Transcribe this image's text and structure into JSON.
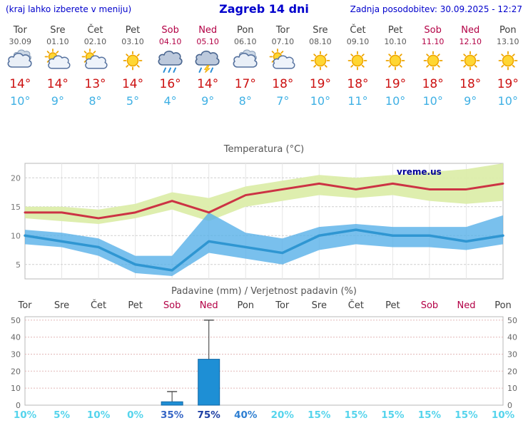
{
  "header": {
    "left_note": "(kraj lahko izberete v meniju)",
    "title": "Zagreb 14 dni",
    "updated": "Zadnja posodobitev: 30.09.2025 - 12:27"
  },
  "colors": {
    "header_blue": "#0000cc",
    "temp_max_red": "#cc1111",
    "temp_min_blue": "#3fb0e4",
    "weekend_red": "#b30045",
    "weekday_gray": "#3d3d3d",
    "date_gray": "#5a5a5a",
    "watermark_navy": "#000099"
  },
  "days": [
    {
      "name": "Tor",
      "date": "30.09",
      "icon": "cloudy-icon",
      "tmax": "14°",
      "tmin": "10°",
      "weekend": false
    },
    {
      "name": "Sre",
      "date": "01.10",
      "icon": "partly-sunny-icon",
      "tmax": "14°",
      "tmin": "9°",
      "weekend": false
    },
    {
      "name": "Čet",
      "date": "02.10",
      "icon": "partly-sunny-icon",
      "tmax": "13°",
      "tmin": "8°",
      "weekend": false
    },
    {
      "name": "Pet",
      "date": "03.10",
      "icon": "sunny-icon",
      "tmax": "14°",
      "tmin": "5°",
      "weekend": false
    },
    {
      "name": "Sob",
      "date": "04.10",
      "icon": "rain-icon",
      "tmax": "16°",
      "tmin": "4°",
      "weekend": true
    },
    {
      "name": "Ned",
      "date": "05.10",
      "icon": "storm-icon",
      "tmax": "14°",
      "tmin": "9°",
      "weekend": true
    },
    {
      "name": "Pon",
      "date": "06.10",
      "icon": "cloudy-icon",
      "tmax": "17°",
      "tmin": "8°",
      "weekend": false
    },
    {
      "name": "Tor",
      "date": "07.10",
      "icon": "partly-sunny-icon",
      "tmax": "18°",
      "tmin": "7°",
      "weekend": false
    },
    {
      "name": "Sre",
      "date": "08.10",
      "icon": "sunny-icon",
      "tmax": "19°",
      "tmin": "10°",
      "weekend": false
    },
    {
      "name": "Čet",
      "date": "09.10",
      "icon": "sunny-icon",
      "tmax": "18°",
      "tmin": "11°",
      "weekend": false
    },
    {
      "name": "Pet",
      "date": "10.10",
      "icon": "sunny-icon",
      "tmax": "19°",
      "tmin": "10°",
      "weekend": false
    },
    {
      "name": "Sob",
      "date": "11.10",
      "icon": "sunny-icon",
      "tmax": "18°",
      "tmin": "10°",
      "weekend": true
    },
    {
      "name": "Ned",
      "date": "12.10",
      "icon": "sunny-icon",
      "tmax": "18°",
      "tmin": "9°",
      "weekend": true
    },
    {
      "name": "Pon",
      "date": "13.10",
      "icon": "sunny-icon",
      "tmax": "19°",
      "tmin": "10°",
      "weekend": false
    }
  ],
  "chart_data": [
    {
      "type": "line",
      "title": "Temperatura (°C)",
      "categories": [
        "Tor 30.09",
        "Sre 01.10",
        "Čet 02.10",
        "Pet 03.10",
        "Sob 04.10",
        "Ned 05.10",
        "Pon 06.10",
        "Tor 07.10",
        "Sre 08.10",
        "Čet 09.10",
        "Pet 10.10",
        "Sob 11.10",
        "Ned 12.10",
        "Pon 13.10"
      ],
      "series": [
        {
          "name": "temp_max",
          "color": "#cc3344",
          "values": [
            14,
            14,
            13,
            14,
            16,
            14,
            17,
            18,
            19,
            18,
            19,
            18,
            18,
            19
          ]
        },
        {
          "name": "temp_min",
          "color": "#2f96d2",
          "values": [
            10,
            9,
            8,
            5,
            4,
            9,
            8,
            7,
            10,
            11,
            10,
            10,
            9,
            10
          ]
        },
        {
          "name": "temp_max_band_upper",
          "color": "#dcedaa",
          "values": [
            15,
            15,
            14.5,
            15.5,
            17.5,
            16.5,
            18.5,
            19.5,
            20.5,
            20,
            20.5,
            21,
            21.5,
            22.5
          ]
        },
        {
          "name": "temp_max_band_lower",
          "color": "#dcedaa",
          "values": [
            13,
            12.5,
            12,
            13,
            14.5,
            12.5,
            15,
            16,
            17,
            16.5,
            17,
            16,
            15.5,
            16
          ]
        },
        {
          "name": "temp_min_band_upper",
          "color": "#57b0e8",
          "values": [
            11,
            10.5,
            9.5,
            6.5,
            6.5,
            14,
            10.5,
            9.5,
            11.5,
            12,
            11.5,
            11.5,
            11.5,
            13.5
          ]
        },
        {
          "name": "temp_min_band_lower",
          "color": "#57b0e8",
          "values": [
            8.5,
            8,
            6.5,
            3.5,
            3,
            7,
            6,
            5,
            7.5,
            8.5,
            8,
            8,
            7.5,
            8.5
          ]
        }
      ],
      "ylim": [
        2.5,
        22.5
      ],
      "yticks": [
        5,
        10,
        15,
        20
      ],
      "grid": true,
      "legend": "none",
      "watermark": "vreme.us"
    },
    {
      "type": "bar",
      "title": "Padavine (mm) / Verjetnost padavin (%)",
      "categories": [
        "Tor",
        "Sre",
        "Čet",
        "Pet",
        "Sob",
        "Ned",
        "Pon",
        "Tor",
        "Sre",
        "Čet",
        "Pet",
        "Sob",
        "Ned",
        "Pon"
      ],
      "weekend_mask": [
        false,
        false,
        false,
        false,
        true,
        true,
        false,
        false,
        false,
        false,
        false,
        true,
        true,
        false
      ],
      "precip_mm": [
        0,
        0,
        0,
        0,
        2,
        27,
        0,
        0,
        0,
        0,
        0,
        0,
        0,
        0
      ],
      "whisker_max_mm": [
        0,
        0,
        0,
        0,
        8,
        50,
        0,
        0,
        0,
        0,
        0,
        0,
        0,
        0
      ],
      "probability_pct": [
        10,
        5,
        10,
        0,
        35,
        75,
        40,
        20,
        15,
        15,
        15,
        15,
        15,
        10
      ],
      "probability_labels": [
        {
          "text": "10%",
          "color": "#55d4ec"
        },
        {
          "text": "5%",
          "color": "#55d4ec"
        },
        {
          "text": "10%",
          "color": "#55d4ec"
        },
        {
          "text": "0%",
          "color": "#55d4ec"
        },
        {
          "text": "35%",
          "color": "#3565c5"
        },
        {
          "text": "75%",
          "color": "#1d3fa3"
        },
        {
          "text": "40%",
          "color": "#2e7fd2"
        },
        {
          "text": "20%",
          "color": "#55d4ec"
        },
        {
          "text": "15%",
          "color": "#55d4ec"
        },
        {
          "text": "15%",
          "color": "#55d4ec"
        },
        {
          "text": "15%",
          "color": "#55d4ec"
        },
        {
          "text": "15%",
          "color": "#55d4ec"
        },
        {
          "text": "15%",
          "color": "#55d4ec"
        },
        {
          "text": "10%",
          "color": "#55d4ec"
        }
      ],
      "ylim": [
        0,
        52
      ],
      "yticks": [
        0,
        10,
        20,
        30,
        40,
        50
      ],
      "bar_color": "#1e8fd5",
      "grid": true
    }
  ]
}
